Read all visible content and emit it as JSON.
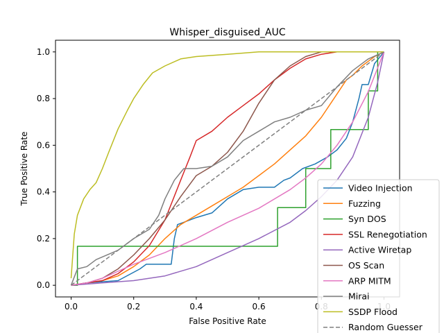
{
  "chart_data": {
    "type": "line",
    "title": "Whisper_disguised_AUC",
    "xlabel": "False Positive Rate",
    "ylabel": "True Positive Rate",
    "xlim": [
      -0.05,
      1.05
    ],
    "ylim": [
      -0.05,
      1.05
    ],
    "xticks": [
      "0.0",
      "0.2",
      "0.4",
      "0.6",
      "0.8",
      "1.0"
    ],
    "yticks": [
      "0.0",
      "0.2",
      "0.4",
      "0.6",
      "0.8",
      "1.0"
    ],
    "legend_position": "lower-right",
    "series": [
      {
        "name": "Video Injection",
        "color": "#1f77b4",
        "points": [
          [
            0,
            0
          ],
          [
            0.05,
            0.01
          ],
          [
            0.15,
            0.02
          ],
          [
            0.22,
            0.07
          ],
          [
            0.24,
            0.09
          ],
          [
            0.32,
            0.09
          ],
          [
            0.33,
            0.2
          ],
          [
            0.34,
            0.26
          ],
          [
            0.36,
            0.27
          ],
          [
            0.4,
            0.29
          ],
          [
            0.45,
            0.31
          ],
          [
            0.5,
            0.37
          ],
          [
            0.55,
            0.41
          ],
          [
            0.6,
            0.42
          ],
          [
            0.65,
            0.42
          ],
          [
            0.68,
            0.45
          ],
          [
            0.7,
            0.46
          ],
          [
            0.74,
            0.5
          ],
          [
            0.78,
            0.52
          ],
          [
            0.82,
            0.55
          ],
          [
            0.85,
            0.58
          ],
          [
            0.88,
            0.63
          ],
          [
            0.9,
            0.7
          ],
          [
            0.92,
            0.8
          ],
          [
            0.93,
            0.86
          ],
          [
            0.95,
            0.86
          ],
          [
            0.97,
            0.95
          ],
          [
            1,
            1
          ]
        ]
      },
      {
        "name": "Fuzzing",
        "color": "#ff7f0e",
        "points": [
          [
            0,
            0
          ],
          [
            0.05,
            0.01
          ],
          [
            0.1,
            0.02
          ],
          [
            0.15,
            0.04
          ],
          [
            0.2,
            0.08
          ],
          [
            0.25,
            0.13
          ],
          [
            0.3,
            0.2
          ],
          [
            0.35,
            0.26
          ],
          [
            0.4,
            0.3
          ],
          [
            0.45,
            0.34
          ],
          [
            0.5,
            0.38
          ],
          [
            0.55,
            0.42
          ],
          [
            0.6,
            0.47
          ],
          [
            0.65,
            0.52
          ],
          [
            0.7,
            0.58
          ],
          [
            0.75,
            0.64
          ],
          [
            0.8,
            0.72
          ],
          [
            0.85,
            0.82
          ],
          [
            0.88,
            0.88
          ],
          [
            0.9,
            0.9
          ],
          [
            0.93,
            0.94
          ],
          [
            0.95,
            0.96
          ],
          [
            0.97,
            0.98
          ],
          [
            1,
            1
          ]
        ]
      },
      {
        "name": "Syn DOS",
        "color": "#2ca02c",
        "points": [
          [
            0,
            0
          ],
          [
            0.02,
            0
          ],
          [
            0.02,
            0.167
          ],
          [
            0.66,
            0.167
          ],
          [
            0.66,
            0.333
          ],
          [
            0.75,
            0.333
          ],
          [
            0.75,
            0.5
          ],
          [
            0.83,
            0.5
          ],
          [
            0.83,
            0.667
          ],
          [
            0.95,
            0.667
          ],
          [
            0.95,
            0.833
          ],
          [
            0.98,
            0.833
          ],
          [
            0.98,
            1
          ],
          [
            1,
            1
          ]
        ]
      },
      {
        "name": "SSL Renegotiation",
        "color": "#d62728",
        "points": [
          [
            0,
            0
          ],
          [
            0.05,
            0.01
          ],
          [
            0.1,
            0.02
          ],
          [
            0.15,
            0.05
          ],
          [
            0.2,
            0.1
          ],
          [
            0.25,
            0.17
          ],
          [
            0.3,
            0.28
          ],
          [
            0.35,
            0.45
          ],
          [
            0.38,
            0.55
          ],
          [
            0.4,
            0.62
          ],
          [
            0.45,
            0.66
          ],
          [
            0.5,
            0.72
          ],
          [
            0.55,
            0.77
          ],
          [
            0.6,
            0.82
          ],
          [
            0.65,
            0.88
          ],
          [
            0.7,
            0.93
          ],
          [
            0.75,
            0.97
          ],
          [
            0.8,
            0.99
          ],
          [
            0.85,
            1
          ],
          [
            1,
            1
          ]
        ]
      },
      {
        "name": "Active Wiretap",
        "color": "#9467bd",
        "points": [
          [
            0,
            0
          ],
          [
            0.1,
            0.01
          ],
          [
            0.2,
            0.02
          ],
          [
            0.3,
            0.04
          ],
          [
            0.4,
            0.08
          ],
          [
            0.5,
            0.14
          ],
          [
            0.6,
            0.2
          ],
          [
            0.7,
            0.27
          ],
          [
            0.75,
            0.32
          ],
          [
            0.8,
            0.38
          ],
          [
            0.85,
            0.45
          ],
          [
            0.9,
            0.55
          ],
          [
            0.95,
            0.72
          ],
          [
            0.98,
            0.87
          ],
          [
            1,
            1
          ]
        ]
      },
      {
        "name": "OS Scan",
        "color": "#8c564b",
        "points": [
          [
            0,
            0
          ],
          [
            0.05,
            0.01
          ],
          [
            0.1,
            0.03
          ],
          [
            0.15,
            0.07
          ],
          [
            0.2,
            0.13
          ],
          [
            0.25,
            0.2
          ],
          [
            0.3,
            0.28
          ],
          [
            0.35,
            0.38
          ],
          [
            0.4,
            0.47
          ],
          [
            0.45,
            0.51
          ],
          [
            0.5,
            0.57
          ],
          [
            0.55,
            0.66
          ],
          [
            0.6,
            0.78
          ],
          [
            0.65,
            0.88
          ],
          [
            0.7,
            0.94
          ],
          [
            0.75,
            0.98
          ],
          [
            0.8,
            1
          ],
          [
            1,
            1
          ]
        ]
      },
      {
        "name": "ARP MITM",
        "color": "#e377c2",
        "points": [
          [
            0,
            0
          ],
          [
            0.05,
            0.01
          ],
          [
            0.1,
            0.03
          ],
          [
            0.15,
            0.06
          ],
          [
            0.2,
            0.09
          ],
          [
            0.3,
            0.14
          ],
          [
            0.4,
            0.2
          ],
          [
            0.5,
            0.27
          ],
          [
            0.6,
            0.33
          ],
          [
            0.7,
            0.41
          ],
          [
            0.75,
            0.46
          ],
          [
            0.8,
            0.52
          ],
          [
            0.85,
            0.6
          ],
          [
            0.9,
            0.7
          ],
          [
            0.95,
            0.83
          ],
          [
            1,
            1
          ]
        ]
      },
      {
        "name": "Mirai",
        "color": "#7f7f7f",
        "points": [
          [
            0,
            0
          ],
          [
            0.02,
            0.07
          ],
          [
            0.05,
            0.08
          ],
          [
            0.08,
            0.11
          ],
          [
            0.15,
            0.15
          ],
          [
            0.2,
            0.2
          ],
          [
            0.25,
            0.24
          ],
          [
            0.28,
            0.3
          ],
          [
            0.3,
            0.37
          ],
          [
            0.33,
            0.45
          ],
          [
            0.36,
            0.5
          ],
          [
            0.4,
            0.5
          ],
          [
            0.45,
            0.51
          ],
          [
            0.5,
            0.55
          ],
          [
            0.55,
            0.62
          ],
          [
            0.6,
            0.66
          ],
          [
            0.65,
            0.7
          ],
          [
            0.7,
            0.72
          ],
          [
            0.75,
            0.75
          ],
          [
            0.8,
            0.77
          ],
          [
            0.85,
            0.85
          ],
          [
            0.9,
            0.92
          ],
          [
            0.95,
            0.97
          ],
          [
            1,
            1
          ]
        ]
      },
      {
        "name": "SSDP Flood",
        "color": "#bcbd22",
        "points": [
          [
            0,
            0.03
          ],
          [
            0.01,
            0.22
          ],
          [
            0.02,
            0.3
          ],
          [
            0.04,
            0.37
          ],
          [
            0.06,
            0.41
          ],
          [
            0.08,
            0.44
          ],
          [
            0.1,
            0.5
          ],
          [
            0.12,
            0.57
          ],
          [
            0.15,
            0.67
          ],
          [
            0.18,
            0.75
          ],
          [
            0.2,
            0.8
          ],
          [
            0.23,
            0.86
          ],
          [
            0.26,
            0.91
          ],
          [
            0.3,
            0.94
          ],
          [
            0.35,
            0.97
          ],
          [
            0.4,
            0.98
          ],
          [
            0.5,
            0.99
          ],
          [
            0.6,
            1
          ],
          [
            1,
            1
          ]
        ]
      },
      {
        "name": "Random Guesser",
        "color": "#7f7f7f",
        "dashed": true,
        "points": [
          [
            0,
            0
          ],
          [
            1,
            1
          ]
        ]
      }
    ]
  }
}
